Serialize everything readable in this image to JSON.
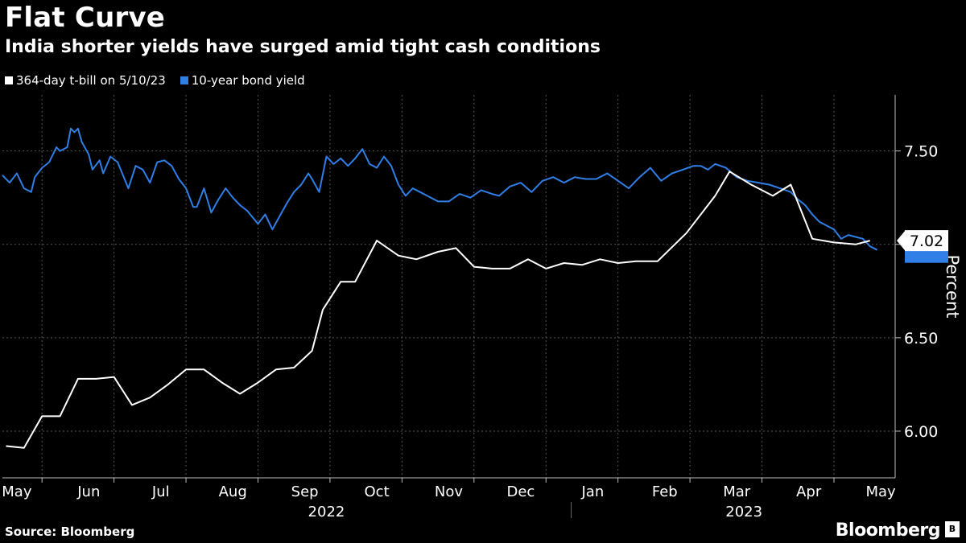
{
  "header": {
    "title": "Flat Curve",
    "subtitle": "India shorter yields have surged amid tight cash conditions"
  },
  "footer": {
    "source": "Source: Bloomberg",
    "brand": "Bloomberg"
  },
  "chart_data": {
    "type": "line",
    "title": "Flat Curve",
    "subtitle": "India shorter yields have surged amid tight cash conditions",
    "ylabel": "Percent",
    "xlabel": "",
    "ylim": [
      5.75,
      7.8
    ],
    "yticks": [
      6.0,
      6.5,
      7.0,
      7.5
    ],
    "ytick_labels": [
      "6.00",
      "6.50",
      "7.00",
      "7.50"
    ],
    "xlim": [
      0,
      12.4
    ],
    "month_ticks": [
      {
        "label": "May",
        "pos": 0.2
      },
      {
        "label": "Jun",
        "pos": 1.2
      },
      {
        "label": "Jul",
        "pos": 2.2
      },
      {
        "label": "Aug",
        "pos": 3.2
      },
      {
        "label": "Sep",
        "pos": 4.2
      },
      {
        "label": "Oct",
        "pos": 5.2
      },
      {
        "label": "Nov",
        "pos": 6.2
      },
      {
        "label": "Dec",
        "pos": 7.2
      },
      {
        "label": "Jan",
        "pos": 8.2
      },
      {
        "label": "Feb",
        "pos": 9.2
      },
      {
        "label": "Mar",
        "pos": 10.2
      },
      {
        "label": "Apr",
        "pos": 11.2
      },
      {
        "label": "May",
        "pos": 12.2
      }
    ],
    "gridlines_x": [
      0.55,
      1.55,
      2.55,
      3.55,
      4.55,
      5.55,
      6.55,
      7.55,
      8.55,
      9.55,
      10.55,
      11.55
    ],
    "years": [
      {
        "label": "2022",
        "pos": 4.5
      },
      {
        "label": "2023",
        "pos": 10.3
      }
    ],
    "year_divider": 7.9,
    "grid": true,
    "legend": "top-left",
    "last_value_label": "7.02",
    "series": [
      {
        "name": "364-day t-bill on 5/10/23",
        "color": "#ffffff",
        "x": [
          0.05,
          0.3,
          0.55,
          0.8,
          1.05,
          1.3,
          1.55,
          1.8,
          2.05,
          2.3,
          2.55,
          2.8,
          3.05,
          3.3,
          3.55,
          3.8,
          4.05,
          4.3,
          4.45,
          4.7,
          4.9,
          5.2,
          5.5,
          5.75,
          6.05,
          6.3,
          6.55,
          6.8,
          7.05,
          7.3,
          7.55,
          7.8,
          8.05,
          8.3,
          8.55,
          8.8,
          9.1,
          9.5,
          9.9,
          10.1,
          10.4,
          10.7,
          10.95,
          11.25,
          11.55,
          11.85,
          12.05
        ],
        "values": [
          5.92,
          5.91,
          6.08,
          6.08,
          6.28,
          6.28,
          6.29,
          6.14,
          6.18,
          6.25,
          6.33,
          6.33,
          6.26,
          6.2,
          6.26,
          6.33,
          6.34,
          6.43,
          6.65,
          6.8,
          6.8,
          7.02,
          6.94,
          6.92,
          6.96,
          6.98,
          6.88,
          6.87,
          6.87,
          6.92,
          6.87,
          6.9,
          6.89,
          6.92,
          6.9,
          6.91,
          6.91,
          7.06,
          7.26,
          7.39,
          7.32,
          7.26,
          7.32,
          7.03,
          7.01,
          7.0,
          7.02
        ]
      },
      {
        "name": "10-year bond yield",
        "color": "#2f7fe6",
        "x": [
          0.0,
          0.1,
          0.2,
          0.3,
          0.4,
          0.45,
          0.55,
          0.65,
          0.75,
          0.8,
          0.9,
          0.95,
          1.0,
          1.05,
          1.1,
          1.2,
          1.25,
          1.35,
          1.4,
          1.5,
          1.6,
          1.75,
          1.85,
          1.95,
          2.05,
          2.15,
          2.25,
          2.35,
          2.45,
          2.55,
          2.65,
          2.7,
          2.8,
          2.9,
          3.0,
          3.1,
          3.2,
          3.3,
          3.4,
          3.55,
          3.65,
          3.75,
          3.85,
          3.95,
          4.05,
          4.15,
          4.25,
          4.3,
          4.4,
          4.5,
          4.6,
          4.7,
          4.8,
          4.9,
          5.0,
          5.1,
          5.2,
          5.3,
          5.4,
          5.5,
          5.6,
          5.7,
          5.8,
          5.9,
          6.05,
          6.2,
          6.35,
          6.5,
          6.65,
          6.8,
          6.9,
          7.05,
          7.2,
          7.35,
          7.5,
          7.65,
          7.8,
          7.95,
          8.1,
          8.25,
          8.4,
          8.55,
          8.7,
          8.85,
          9.0,
          9.15,
          9.3,
          9.45,
          9.6,
          9.7,
          9.8,
          9.9,
          10.05,
          10.2,
          10.35,
          10.5,
          10.65,
          10.8,
          10.95,
          11.05,
          11.15,
          11.25,
          11.35,
          11.45,
          11.55,
          11.65,
          11.75,
          11.85,
          11.95,
          12.05,
          12.15
        ],
        "values": [
          7.37,
          7.33,
          7.38,
          7.3,
          7.28,
          7.36,
          7.41,
          7.44,
          7.52,
          7.5,
          7.52,
          7.62,
          7.6,
          7.62,
          7.55,
          7.48,
          7.4,
          7.45,
          7.38,
          7.47,
          7.44,
          7.3,
          7.42,
          7.4,
          7.33,
          7.44,
          7.45,
          7.42,
          7.35,
          7.3,
          7.2,
          7.2,
          7.3,
          7.17,
          7.24,
          7.3,
          7.25,
          7.21,
          7.18,
          7.11,
          7.16,
          7.08,
          7.15,
          7.22,
          7.28,
          7.32,
          7.38,
          7.35,
          7.28,
          7.47,
          7.43,
          7.46,
          7.42,
          7.46,
          7.51,
          7.43,
          7.41,
          7.47,
          7.42,
          7.32,
          7.26,
          7.3,
          7.28,
          7.26,
          7.23,
          7.23,
          7.27,
          7.25,
          7.29,
          7.27,
          7.26,
          7.31,
          7.33,
          7.28,
          7.34,
          7.36,
          7.33,
          7.36,
          7.35,
          7.35,
          7.38,
          7.34,
          7.3,
          7.36,
          7.41,
          7.34,
          7.38,
          7.4,
          7.42,
          7.42,
          7.4,
          7.43,
          7.41,
          7.36,
          7.34,
          7.33,
          7.32,
          7.3,
          7.28,
          7.24,
          7.21,
          7.16,
          7.12,
          7.1,
          7.08,
          7.03,
          7.05,
          7.04,
          7.03,
          6.99,
          6.97
        ]
      }
    ]
  }
}
